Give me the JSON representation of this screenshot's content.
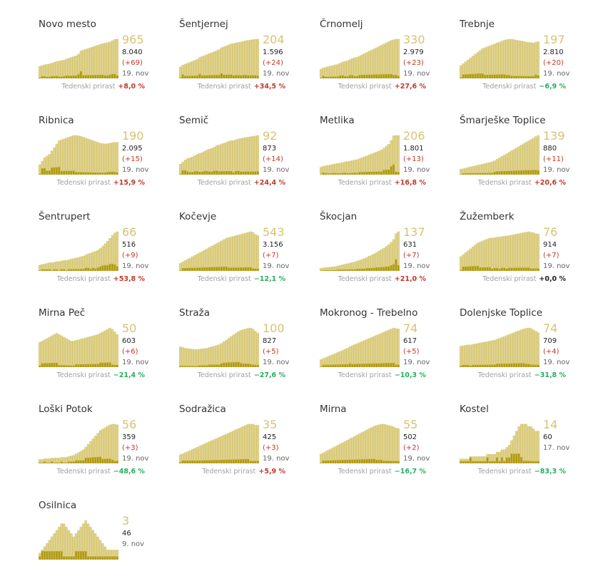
{
  "growth_label": "Tedenski prirast",
  "colors": {
    "area": "#d6c570",
    "bars": "#e8dfab",
    "daily": "#b09a10",
    "active_text": "#d6c374",
    "positive": "#c0392b",
    "negative": "#27ae60"
  },
  "chart_data": [
    {
      "type": "area",
      "name": "Novo mesto",
      "active": "965",
      "total": "8.040",
      "diff": "(+69)",
      "date": "19. nov",
      "growth": "+8,0 %",
      "growth_sign": "pos",
      "active_series": [
        300,
        320,
        340,
        350,
        360,
        380,
        400,
        420,
        430,
        440,
        455,
        480,
        500,
        520,
        540,
        560,
        600,
        680,
        700,
        720,
        740,
        760,
        780,
        800,
        820,
        840,
        860,
        870,
        880,
        900,
        930,
        960,
        965
      ]
    },
    {
      "type": "area",
      "name": "Šentjernej",
      "active": "204",
      "total": "1.596",
      "diff": "(+24)",
      "date": "19. nov",
      "growth": "+34,5 %",
      "growth_sign": "pos",
      "active_series": [
        60,
        70,
        75,
        80,
        85,
        90,
        95,
        100,
        110,
        115,
        120,
        125,
        130,
        135,
        140,
        145,
        150,
        160,
        165,
        170,
        175,
        180,
        182,
        185,
        188,
        190,
        193,
        196,
        198,
        200,
        202,
        204,
        204
      ]
    },
    {
      "type": "area",
      "name": "Črnomelj",
      "active": "330",
      "total": "2.979",
      "diff": "(+23)",
      "date": "19. nov",
      "growth": "+27,6 %",
      "growth_sign": "pos",
      "active_series": [
        80,
        90,
        95,
        100,
        105,
        110,
        115,
        120,
        130,
        140,
        145,
        150,
        160,
        170,
        175,
        180,
        190,
        200,
        210,
        220,
        230,
        240,
        250,
        260,
        270,
        280,
        290,
        300,
        310,
        320,
        325,
        330,
        330
      ]
    },
    {
      "type": "area",
      "name": "Trebnje",
      "active": "197",
      "total": "2.810",
      "diff": "(+20)",
      "date": "19. nov",
      "growth": "−6,9 %",
      "growth_sign": "neg",
      "active_series": [
        70,
        80,
        90,
        100,
        110,
        120,
        130,
        140,
        150,
        160,
        165,
        170,
        175,
        180,
        185,
        190,
        195,
        200,
        205,
        208,
        210,
        210,
        208,
        205,
        203,
        200,
        198,
        195,
        193,
        192,
        190,
        195,
        197
      ]
    },
    {
      "type": "area",
      "name": "Ribnica",
      "active": "190",
      "total": "2.095",
      "diff": "(+15)",
      "date": "19. nov",
      "growth": "+15,9 %",
      "growth_sign": "pos",
      "active_series": [
        60,
        80,
        100,
        110,
        120,
        140,
        160,
        180,
        200,
        205,
        210,
        215,
        220,
        225,
        230,
        230,
        228,
        225,
        220,
        215,
        210,
        205,
        200,
        195,
        190,
        185,
        182,
        180,
        182,
        185,
        188,
        190,
        190
      ]
    },
    {
      "type": "area",
      "name": "Semič",
      "active": "92",
      "total": "873",
      "diff": "(+14)",
      "date": "19. nov",
      "growth": "+24,4 %",
      "growth_sign": "pos",
      "active_series": [
        25,
        30,
        35,
        38,
        40,
        42,
        45,
        48,
        50,
        52,
        55,
        58,
        60,
        62,
        65,
        68,
        70,
        72,
        74,
        76,
        78,
        80,
        80,
        82,
        84,
        85,
        86,
        87,
        88,
        89,
        90,
        91,
        92
      ]
    },
    {
      "type": "area",
      "name": "Metlika",
      "active": "206",
      "total": "1.801",
      "diff": "(+13)",
      "date": "19. nov",
      "growth": "+16,8 %",
      "growth_sign": "pos",
      "active_series": [
        40,
        45,
        48,
        50,
        52,
        55,
        58,
        60,
        62,
        65,
        68,
        70,
        72,
        75,
        78,
        80,
        85,
        90,
        95,
        100,
        105,
        110,
        115,
        120,
        125,
        130,
        140,
        150,
        160,
        180,
        205,
        206,
        206
      ]
    },
    {
      "type": "area",
      "name": "Šmarješke Toplice",
      "active": "139",
      "total": "880",
      "diff": "(+11)",
      "date": "19. nov",
      "growth": "+20,6 %",
      "growth_sign": "pos",
      "active_series": [
        20,
        22,
        24,
        26,
        28,
        30,
        32,
        34,
        36,
        38,
        40,
        42,
        44,
        46,
        50,
        55,
        60,
        65,
        70,
        75,
        80,
        85,
        90,
        95,
        100,
        105,
        110,
        115,
        120,
        125,
        130,
        135,
        139
      ]
    },
    {
      "type": "area",
      "name": "Šentrupert",
      "active": "66",
      "total": "516",
      "diff": "(+9)",
      "date": "19. nov",
      "growth": "+53,8 %",
      "growth_sign": "pos",
      "active_series": [
        10,
        11,
        12,
        13,
        14,
        14,
        15,
        16,
        16,
        17,
        18,
        18,
        19,
        20,
        21,
        22,
        23,
        24,
        25,
        27,
        29,
        30,
        32,
        33,
        35,
        38,
        42,
        46,
        50,
        55,
        60,
        64,
        66
      ]
    },
    {
      "type": "area",
      "name": "Kočevje",
      "active": "543",
      "total": "3.156",
      "diff": "(+7)",
      "date": "19. nov",
      "growth": "−12,1 %",
      "growth_sign": "neg",
      "active_series": [
        120,
        140,
        160,
        180,
        200,
        220,
        240,
        260,
        280,
        300,
        320,
        340,
        360,
        380,
        400,
        420,
        440,
        460,
        480,
        500,
        510,
        520,
        530,
        540,
        550,
        560,
        570,
        580,
        590,
        600,
        590,
        560,
        543
      ]
    },
    {
      "type": "area",
      "name": "Škocjan",
      "active": "137",
      "total": "631",
      "diff": "(+7)",
      "date": "19. nov",
      "growth": "+21,0 %",
      "growth_sign": "pos",
      "active_series": [
        10,
        11,
        12,
        13,
        14,
        15,
        16,
        18,
        20,
        22,
        24,
        26,
        28,
        30,
        32,
        35,
        38,
        41,
        44,
        48,
        52,
        56,
        60,
        65,
        70,
        75,
        80,
        86,
        92,
        100,
        110,
        130,
        137
      ]
    },
    {
      "type": "area",
      "name": "Žužemberk",
      "active": "76",
      "total": "914",
      "diff": "(+7)",
      "date": "19. nov",
      "growth": "+0,0 %",
      "growth_sign": "zero",
      "active_series": [
        30,
        34,
        38,
        42,
        46,
        50,
        54,
        58,
        60,
        62,
        64,
        66,
        68,
        68,
        69,
        70,
        70,
        71,
        72,
        72,
        73,
        74,
        75,
        76,
        77,
        78,
        79,
        80,
        81,
        80,
        79,
        77,
        76
      ]
    },
    {
      "type": "area",
      "name": "Mirna Peč",
      "active": "50",
      "total": "603",
      "diff": "(+6)",
      "date": "19. nov",
      "growth": "−21,4 %",
      "growth_sign": "neg",
      "active_series": [
        38,
        40,
        42,
        44,
        46,
        48,
        50,
        52,
        50,
        48,
        46,
        44,
        42,
        40,
        40,
        41,
        42,
        43,
        44,
        45,
        46,
        47,
        48,
        49,
        50,
        52,
        54,
        56,
        58,
        60,
        58,
        54,
        50
      ]
    },
    {
      "type": "area",
      "name": "Straža",
      "active": "100",
      "total": "827",
      "diff": "(+5)",
      "date": "19. nov",
      "growth": "−27,6 %",
      "growth_sign": "neg",
      "active_series": [
        60,
        58,
        56,
        55,
        54,
        53,
        52,
        52,
        53,
        54,
        55,
        56,
        58,
        60,
        62,
        64,
        66,
        70,
        75,
        80,
        85,
        90,
        95,
        100,
        105,
        108,
        110,
        112,
        114,
        115,
        112,
        106,
        100
      ]
    },
    {
      "type": "area",
      "name": "Mokronog - Trebelno",
      "active": "74",
      "total": "617",
      "diff": "(+5)",
      "date": "19. nov",
      "growth": "−10,3 %",
      "growth_sign": "neg",
      "active_series": [
        15,
        17,
        19,
        21,
        23,
        25,
        27,
        29,
        31,
        33,
        35,
        37,
        40,
        42,
        44,
        46,
        48,
        50,
        52,
        54,
        56,
        58,
        60,
        62,
        64,
        66,
        68,
        70,
        72,
        74,
        76,
        75,
        74
      ]
    },
    {
      "type": "area",
      "name": "Dolenjske Toplice",
      "active": "74",
      "total": "709",
      "diff": "(+4)",
      "date": "19. nov",
      "growth": "−31,8 %",
      "growth_sign": "neg",
      "active_series": [
        45,
        46,
        47,
        48,
        48,
        49,
        50,
        51,
        52,
        53,
        54,
        55,
        56,
        57,
        58,
        60,
        62,
        64,
        66,
        68,
        70,
        72,
        74,
        76,
        78,
        80,
        82,
        83,
        84,
        83,
        80,
        77,
        74
      ]
    },
    {
      "type": "area",
      "name": "Loški Potok",
      "active": "56",
      "total": "359",
      "diff": "(+3)",
      "date": "19. nov",
      "growth": "−48,6 %",
      "growth_sign": "neg",
      "active_series": [
        6,
        6,
        7,
        7,
        7,
        8,
        8,
        8,
        8,
        9,
        9,
        9,
        10,
        11,
        12,
        14,
        16,
        18,
        20,
        24,
        28,
        32,
        36,
        40,
        44,
        48,
        50,
        52,
        54,
        56,
        57,
        57,
        56
      ]
    },
    {
      "type": "area",
      "name": "Sodražica",
      "active": "35",
      "total": "425",
      "diff": "(+3)",
      "date": "19. nov",
      "growth": "+5,9 %",
      "growth_sign": "pos",
      "active_series": [
        8,
        9,
        10,
        11,
        12,
        13,
        14,
        15,
        16,
        17,
        18,
        19,
        20,
        21,
        22,
        23,
        24,
        25,
        26,
        27,
        28,
        29,
        30,
        31,
        32,
        33,
        34,
        35,
        36,
        36,
        36,
        35,
        35
      ]
    },
    {
      "type": "area",
      "name": "Mirna",
      "active": "55",
      "total": "502",
      "diff": "(+2)",
      "date": "19. nov",
      "growth": "−16,7 %",
      "growth_sign": "neg",
      "active_series": [
        15,
        17,
        19,
        21,
        23,
        25,
        27,
        29,
        31,
        33,
        35,
        37,
        39,
        41,
        43,
        45,
        47,
        49,
        51,
        53,
        55,
        57,
        59,
        60,
        61,
        62,
        62,
        61,
        60,
        59,
        58,
        56,
        55
      ]
    },
    {
      "type": "area",
      "name": "Kostel",
      "active": "14",
      "total": "60",
      "diff": "",
      "date": "17. nov",
      "growth": "−83,3 %",
      "growth_sign": "neg",
      "active_series": [
        2,
        2,
        2,
        2,
        3,
        3,
        3,
        3,
        3,
        3,
        3,
        4,
        4,
        4,
        4,
        5,
        5,
        6,
        6,
        7,
        8,
        10,
        12,
        14,
        16,
        17,
        17,
        17,
        16,
        16,
        15,
        14,
        14
      ]
    },
    {
      "type": "area",
      "name": "Osilnica",
      "active": "3",
      "total": "46",
      "diff": "",
      "date": "9. nov",
      "growth": "",
      "growth_sign": "",
      "active_series": [
        2,
        3,
        4,
        5,
        6,
        7,
        8,
        9,
        10,
        11,
        11,
        10,
        9,
        8,
        7,
        8,
        9,
        10,
        11,
        12,
        11,
        10,
        9,
        8,
        7,
        6,
        5,
        4,
        3,
        3,
        3,
        3,
        3
      ]
    }
  ]
}
